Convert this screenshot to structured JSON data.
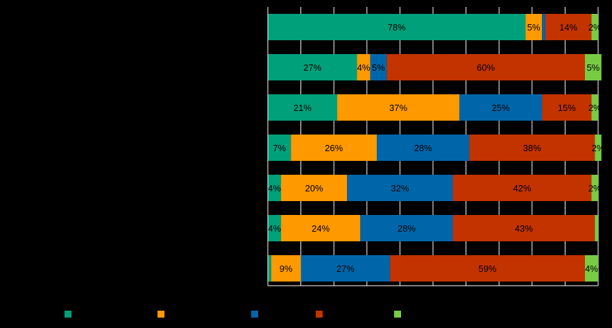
{
  "chart_data": {
    "type": "bar",
    "orientation": "horizontal",
    "stacked": true,
    "xlim": [
      0,
      100
    ],
    "x_gridlines": [
      0,
      10,
      20,
      30,
      40,
      50,
      60,
      70,
      80,
      90,
      100
    ],
    "grid": true,
    "legend": "bottom",
    "rows": 7,
    "series": [
      {
        "color": "#00A07A",
        "values": [
          78,
          27,
          21,
          7,
          4,
          4,
          1
        ],
        "labels": [
          "78%",
          "27%",
          "21%",
          "7%",
          "4%",
          "4%",
          ""
        ]
      },
      {
        "color": "#FF9900",
        "values": [
          5,
          4,
          37,
          26,
          20,
          24,
          9
        ],
        "labels": [
          "5%",
          "4%",
          "37%",
          "26%",
          "20%",
          "24%",
          "9%"
        ]
      },
      {
        "color": "#0066AA",
        "values": [
          1,
          5,
          25,
          28,
          32,
          28,
          27
        ],
        "labels": [
          "",
          "5%",
          "25%",
          "28%",
          "32%",
          "28%",
          "27%"
        ]
      },
      {
        "color": "#C23300",
        "values": [
          14,
          60,
          15,
          38,
          42,
          43,
          59
        ],
        "labels": [
          "14%",
          "60%",
          "15%",
          "38%",
          "42%",
          "43%",
          "59%"
        ]
      },
      {
        "color": "#77CC44",
        "values": [
          2,
          5,
          2,
          2,
          2,
          1,
          4
        ],
        "labels": [
          "2%",
          "5%",
          "2%",
          "2%",
          "2%",
          "",
          "4%"
        ]
      }
    ]
  }
}
